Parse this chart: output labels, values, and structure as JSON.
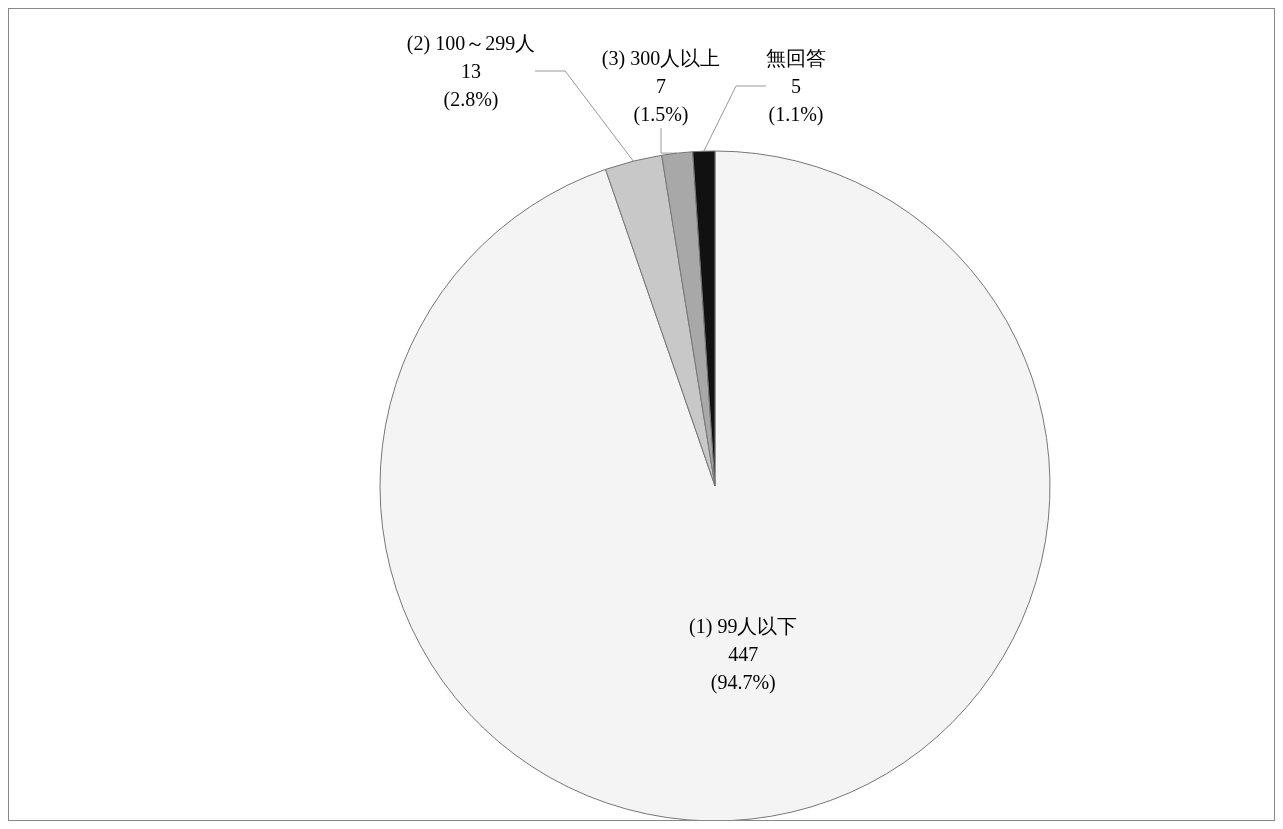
{
  "chart_data": {
    "type": "pie",
    "categories": [
      "(1) 99人以下",
      "(2) 100～299人",
      "(3) 300人以上",
      "無回答"
    ],
    "values": [
      447,
      13,
      7,
      5
    ],
    "value_labels": [
      "447\n(94.7%)",
      "13\n(2.8%)",
      "7\n(1.5%)",
      "5\n(1.1%)"
    ],
    "colors": [
      "#f4f4f4",
      "#c8c8c8",
      "#a8a8a8",
      "#111111"
    ],
    "legend": false
  }
}
